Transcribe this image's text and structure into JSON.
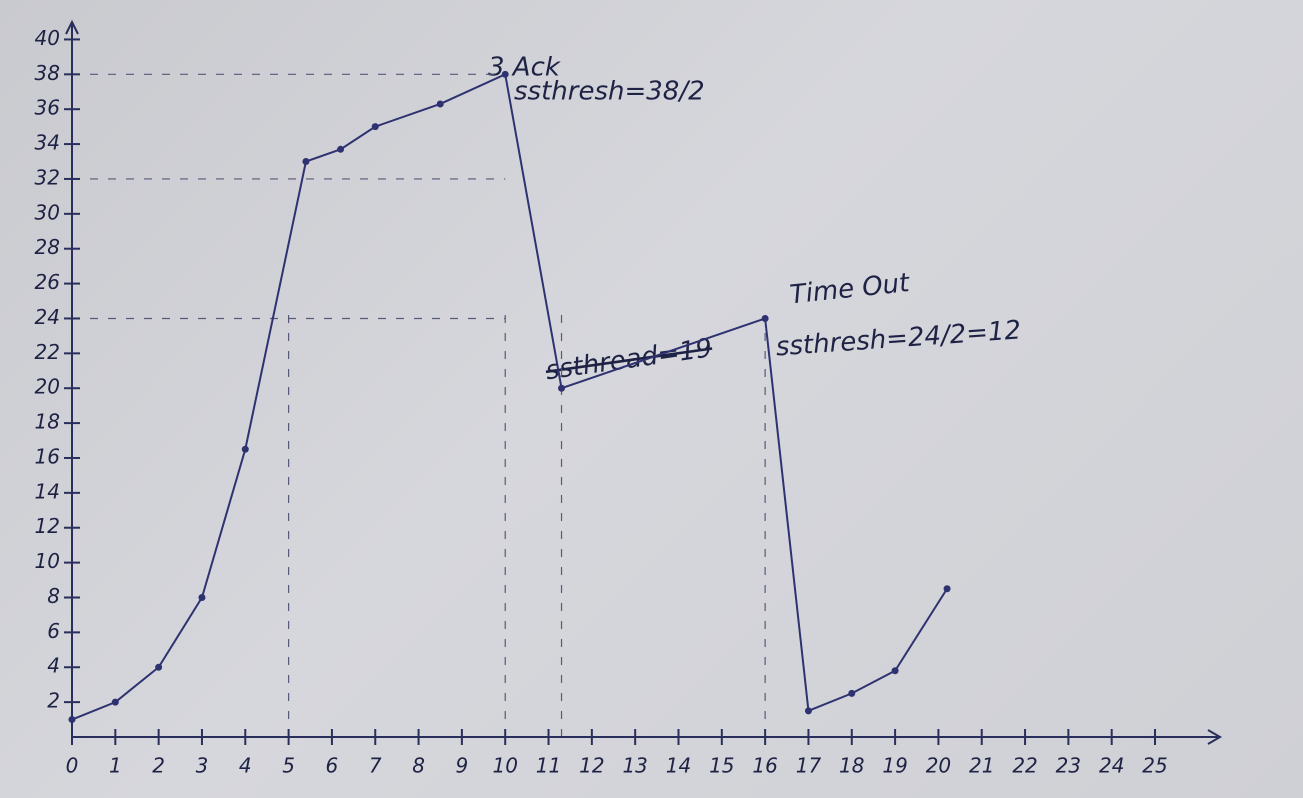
{
  "chart_data": {
    "type": "line",
    "x": [
      0,
      1,
      2,
      3,
      4,
      5.4,
      6.2,
      7,
      8.5,
      10,
      11.3,
      16,
      17,
      18,
      19,
      20.2
    ],
    "values": [
      1,
      2,
      4,
      8,
      16.5,
      33,
      33.7,
      35,
      36.3,
      38,
      20,
      24,
      1.5,
      2.5,
      3.8,
      8.5
    ],
    "color": "#2e3270",
    "xlim": [
      0,
      26.5
    ],
    "ylim": [
      0,
      41
    ],
    "xticks": [
      0,
      1,
      2,
      3,
      4,
      5,
      6,
      7,
      8,
      9,
      10,
      11,
      12,
      13,
      14,
      15,
      16,
      17,
      18,
      19,
      20,
      21,
      22,
      23,
      24,
      25
    ],
    "yticks": [
      2,
      4,
      6,
      8,
      10,
      12,
      14,
      16,
      18,
      20,
      22,
      24,
      26,
      28,
      30,
      32,
      34,
      36,
      38,
      40
    ],
    "hlines": [
      38,
      32,
      24
    ],
    "vlines": [
      5,
      10,
      11.3,
      16
    ],
    "annotations": [
      "3 Ack",
      "ssthresh=38/2",
      "ssthread=19",
      "Time Out",
      "ssthresh=24/2=12"
    ]
  }
}
